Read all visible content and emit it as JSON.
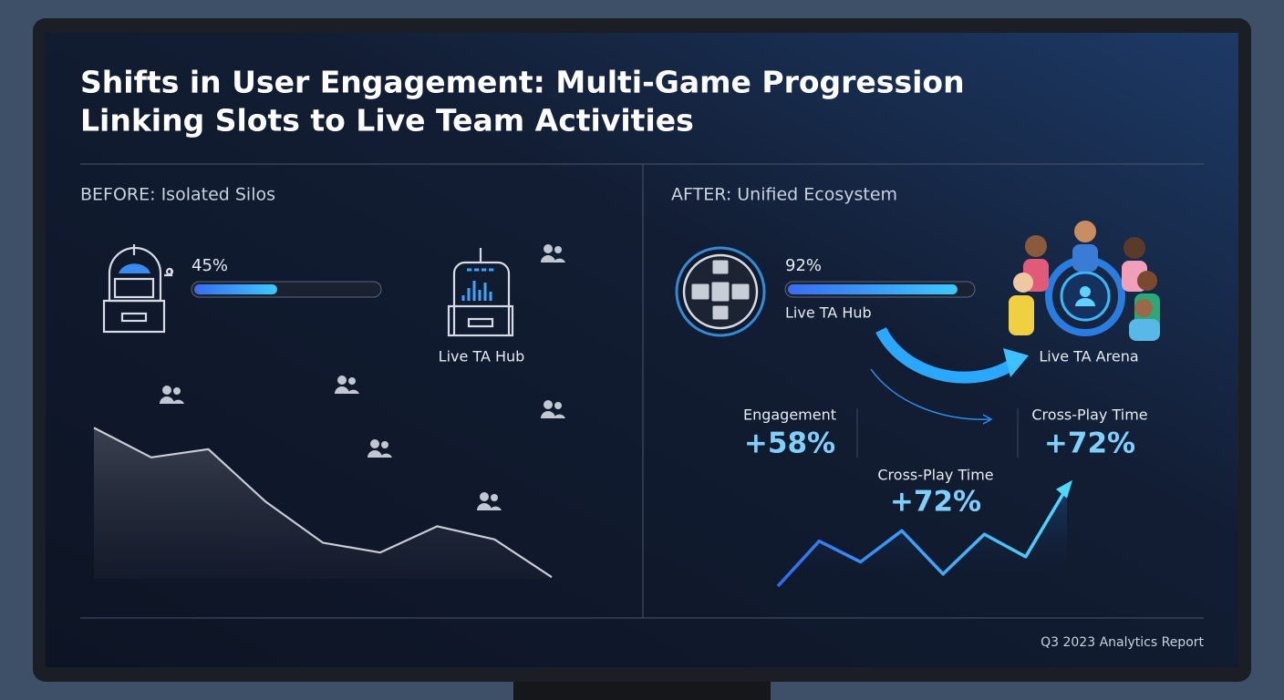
{
  "title_lines": [
    "Shifts in User Engagement: Multi-Game Progression",
    "Linking Slots to Live Team Activities"
  ],
  "before": {
    "heading": "BEFORE: Isolated Silos",
    "progress": {
      "value": 45,
      "label": "45%",
      "range": [
        0,
        100
      ]
    },
    "hub_label": "Live TA Hub",
    "trend": {
      "values": [
        92,
        74,
        79,
        47,
        22,
        16,
        32,
        24,
        1
      ],
      "ylim": [
        0,
        100
      ]
    }
  },
  "after": {
    "heading": "AFTER: Unified Ecosystem",
    "progress": {
      "value": 92,
      "label": "92%",
      "range": [
        0,
        100
      ]
    },
    "hub_label": "Live TA Hub",
    "arena_label": "Live TA Arena",
    "stats": [
      {
        "label": "Engagement",
        "value": "+58%"
      },
      {
        "label": "Cross-Play Time",
        "value": "+72%"
      },
      {
        "label": "Cross-Play Time",
        "value": "+72%"
      }
    ],
    "trend": {
      "values": [
        1,
        27,
        15,
        33,
        8,
        31,
        18,
        58
      ],
      "ylim": [
        0,
        100
      ]
    }
  },
  "footer": "Q3 2023 Analytics Report"
}
